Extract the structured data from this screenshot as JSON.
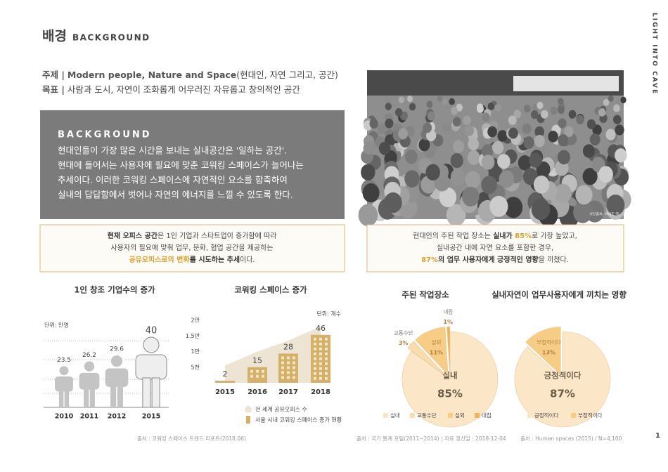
{
  "header": {
    "title": "배경",
    "subtitle": "BACKGROUND",
    "side": "LIGHT INTO CAVE",
    "page": 1
  },
  "intro": {
    "rows": [
      [
        "주제 |",
        "Modern people, Nature and Space",
        "(현대인, 자연 그리고, 공간)"
      ],
      [
        "목표 |",
        "사람과 도시, 자연이 조화롭게 어우러진 자유롭고 창의적인 공간"
      ]
    ]
  },
  "background": {
    "heading": "BACKGROUND",
    "lines": [
      "현대인들이 가장 많은 시간을 보내는 실내공간은 '일하는 공간'.",
      "현대에 들어서는 사용자에 필요에 맞춘 코워킹 스페이스가 늘어나는",
      "추세이다. 이러한 코워킹 스페이스에 자연적인 요소를 함축하여",
      "실내의 답답함에서 벗어나 자연의 에너지를 느낄 수 있도록 한다."
    ]
  },
  "photo": {
    "caption": "사진출처: 여의도 역"
  },
  "callouts": [
    {
      "lines": [
        [
          "현재 오피스 공간",
          "은 1인 기업과 스타트업이 증가함에 따라"
        ],
        [
          "사용자의 필요에 맞춰 업무, 문화, 협업 공간을 제공하는"
        ],
        [
          "공유오피스로의 변화",
          "를 시도하는 추세",
          "이다."
        ]
      ]
    },
    {
      "lines": [
        [
          "현대인의 주된 작업 장소는 ",
          "실내가 ",
          "85%",
          "로 가장 높았고,"
        ],
        [
          "실내공간 내에 자연 요소를 포함한 경우,"
        ],
        [
          "87%",
          "의 업무 사용자에게 긍정적인 영향",
          "을 끼쳤다."
        ]
      ]
    }
  ],
  "sources": [
    "출처 : 코워킹 스페이스 트렌드 리포트(2018.06)",
    "출처 : 국가 통계 포털(2011~2014) | 자료 갱신일 : 2018-12-04",
    "출처 : Human spaces (2015) / N=4,100"
  ],
  "chart_data": [
    {
      "type": "pictogram",
      "title": "1인 창조 기업수의 증가",
      "unit": "단위: 만명",
      "categories": [
        "2010",
        "2011",
        "2012",
        "2015"
      ],
      "values": [
        23.5,
        26.2,
        29.6,
        40
      ],
      "color": "#c4c4c4"
    },
    {
      "type": "combo",
      "title": "코워킹 스페이스 증가",
      "unit": "단위: 개수",
      "categories": [
        "2015",
        "2016",
        "2017",
        "2018"
      ],
      "ylim": [
        0,
        20000
      ],
      "yticks": [
        {
          "value": 5000,
          "label": "5천"
        },
        {
          "value": 10000,
          "label": "1만"
        },
        {
          "value": 15000,
          "label": "1.5만"
        },
        {
          "value": 20000,
          "label": "2만"
        }
      ],
      "y2lim": [
        0,
        60
      ],
      "series": [
        {
          "name": "전 세계 공유오피스 수",
          "type": "area",
          "color": "#ede4d3",
          "values": [
            5500,
            10000,
            13500,
            18000
          ]
        },
        {
          "name": "서울 시내 코워킹 스페이스 증가 현황",
          "type": "bar",
          "axis": "y2",
          "color": "#d4b06a",
          "values": [
            2,
            15,
            28,
            46
          ]
        }
      ]
    },
    {
      "type": "pie",
      "title": "주된 작업장소",
      "categories": [
        "실내",
        "교통수단",
        "실외",
        "내집"
      ],
      "values": [
        85,
        3,
        11,
        1
      ],
      "value_labels": [
        "85%",
        "3%",
        "11%",
        "1%"
      ],
      "colors": [
        "#fbe6c8",
        "#f9dcae",
        "#f7cd85",
        "#efb35a"
      ]
    },
    {
      "type": "pie",
      "title": "실내자연이 업무사용자에게 끼치는 영향",
      "categories": [
        "긍정적이다",
        "부정적이다"
      ],
      "values": [
        87,
        13
      ],
      "value_labels": [
        "87%",
        "13%"
      ],
      "colors": [
        "#fbe6c8",
        "#f7cd85"
      ]
    }
  ]
}
